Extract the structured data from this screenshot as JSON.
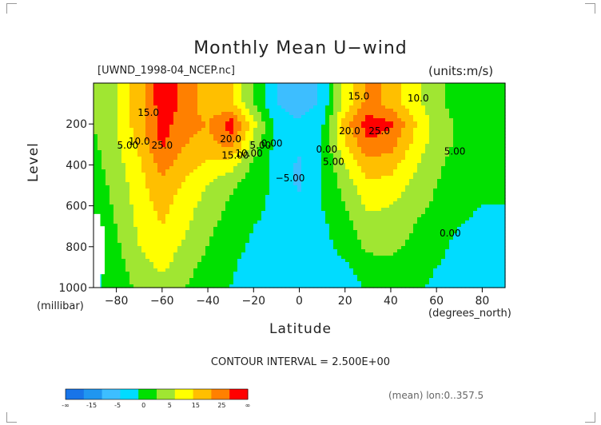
{
  "chart_data": {
    "type": "heatmap",
    "title": "Monthly Mean U−wind",
    "subtitle_left": "[UWND_1998-04_NCEP.nc]",
    "subtitle_right": "(units:m/s)",
    "xlabel": "Latitude",
    "ylabel": "Level",
    "x_unit_label": "(degrees_north)",
    "y_unit_label": "(millibar)",
    "xlim": [
      -90,
      90
    ],
    "ylim": [
      1000,
      0
    ],
    "x_ticks": [
      -80,
      -60,
      -40,
      -20,
      0,
      20,
      40,
      60,
      80
    ],
    "x_tick_labels": [
      "−80",
      "−60",
      "−40",
      "−20",
      "0",
      "20",
      "40",
      "60",
      "80"
    ],
    "y_ticks": [
      200,
      400,
      600,
      800,
      1000
    ],
    "y_tick_labels": [
      "200",
      "400",
      "600",
      "800",
      "1000"
    ],
    "contour_interval": "CONTOUR INTERVAL = 2.500E+00",
    "footer_note": "(mean) lon:0..357.5",
    "contour_labels": [
      {
        "text": "15.0",
        "x": -66,
        "y": 160
      },
      {
        "text": "10.0",
        "x": -70,
        "y": 300
      },
      {
        "text": "5.00",
        "x": -75,
        "y": 320
      },
      {
        "text": "25.0",
        "x": -60,
        "y": 320
      },
      {
        "text": "20.0",
        "x": -30,
        "y": 290
      },
      {
        "text": "15.00",
        "x": -28,
        "y": 370
      },
      {
        "text": "10.00",
        "x": -22,
        "y": 360
      },
      {
        "text": "5.00",
        "x": -17,
        "y": 320
      },
      {
        "text": "0.00",
        "x": -12,
        "y": 310
      },
      {
        "text": "−5.00",
        "x": -4,
        "y": 480
      },
      {
        "text": "0.00",
        "x": 12,
        "y": 340
      },
      {
        "text": "5.00",
        "x": 15,
        "y": 400
      },
      {
        "text": "15.0",
        "x": 26,
        "y": 80
      },
      {
        "text": "10.0",
        "x": 52,
        "y": 90
      },
      {
        "text": "20.0",
        "x": 22,
        "y": 250
      },
      {
        "text": "25.0",
        "x": 35,
        "y": 250
      },
      {
        "text": "5.00",
        "x": 68,
        "y": 350
      },
      {
        "text": "0.00",
        "x": 66,
        "y": 750
      }
    ],
    "colorbar": {
      "levels_label": [
        "-∞",
        "-15",
        "-5",
        "0",
        "5",
        "15",
        "25",
        "∞"
      ],
      "colors": [
        "#1874e8",
        "#2096f0",
        "#3dbeff",
        "#00dcff",
        "#00e000",
        "#a0e632",
        "#ffff00",
        "#ffbf00",
        "#ff8000",
        "#ff0000"
      ]
    },
    "approx_field": {
      "description_values_m_per_s": "u-wind sampled every 10 deg lat from -90 to 90 at levels 100..1000 hPa",
      "lat": [
        -90,
        -80,
        -70,
        -60,
        -50,
        -40,
        -30,
        -20,
        -10,
        0,
        10,
        20,
        30,
        40,
        50,
        60,
        70,
        80,
        90
      ],
      "lev": [
        100,
        200,
        300,
        400,
        500,
        600,
        700,
        800,
        900,
        1000
      ],
      "u": [
        [
          5,
          10,
          18,
          28,
          24,
          16,
          16,
          5,
          -5,
          -8,
          -4,
          12,
          22,
          18,
          12,
          6,
          3,
          2,
          1
        ],
        [
          5,
          10,
          18,
          27,
          22,
          20,
          28,
          12,
          -2,
          -4,
          -1,
          18,
          28,
          26,
          16,
          8,
          4,
          3,
          2
        ],
        [
          4,
          9,
          16,
          26,
          20,
          18,
          22,
          8,
          -2,
          -3,
          0,
          15,
          24,
          22,
          14,
          7,
          4,
          3,
          2
        ],
        [
          3,
          8,
          14,
          22,
          17,
          14,
          12,
          4,
          -2,
          -6,
          0,
          10,
          18,
          17,
          11,
          6,
          3,
          2,
          1
        ],
        [
          2,
          7,
          13,
          19,
          14,
          10,
          6,
          2,
          -1,
          -6,
          0,
          7,
          14,
          13,
          9,
          5,
          2,
          1,
          1
        ],
        [
          1,
          6,
          12,
          17,
          12,
          8,
          4,
          1,
          -1,
          -3,
          0,
          5,
          11,
          10,
          7,
          4,
          1,
          0,
          0
        ],
        [
          0,
          5,
          11,
          15,
          11,
          6,
          3,
          0,
          -1,
          -2,
          -1,
          3,
          8,
          8,
          5,
          2,
          0,
          -1,
          -1
        ],
        [
          -1,
          4,
          10,
          13,
          9,
          5,
          2,
          -1,
          -2,
          -2,
          -2,
          2,
          6,
          6,
          4,
          1,
          -1,
          -1,
          -1
        ],
        [
          -1,
          3,
          8,
          11,
          7,
          3,
          1,
          -3,
          -4,
          -2,
          -4,
          -1,
          3,
          4,
          2,
          0,
          -1,
          -1,
          -1
        ],
        [
          -1,
          2,
          6,
          8,
          5,
          2,
          0,
          -4,
          -5,
          -2,
          -5,
          -3,
          1,
          2,
          1,
          -1,
          -1,
          -1,
          -1
        ]
      ]
    }
  }
}
